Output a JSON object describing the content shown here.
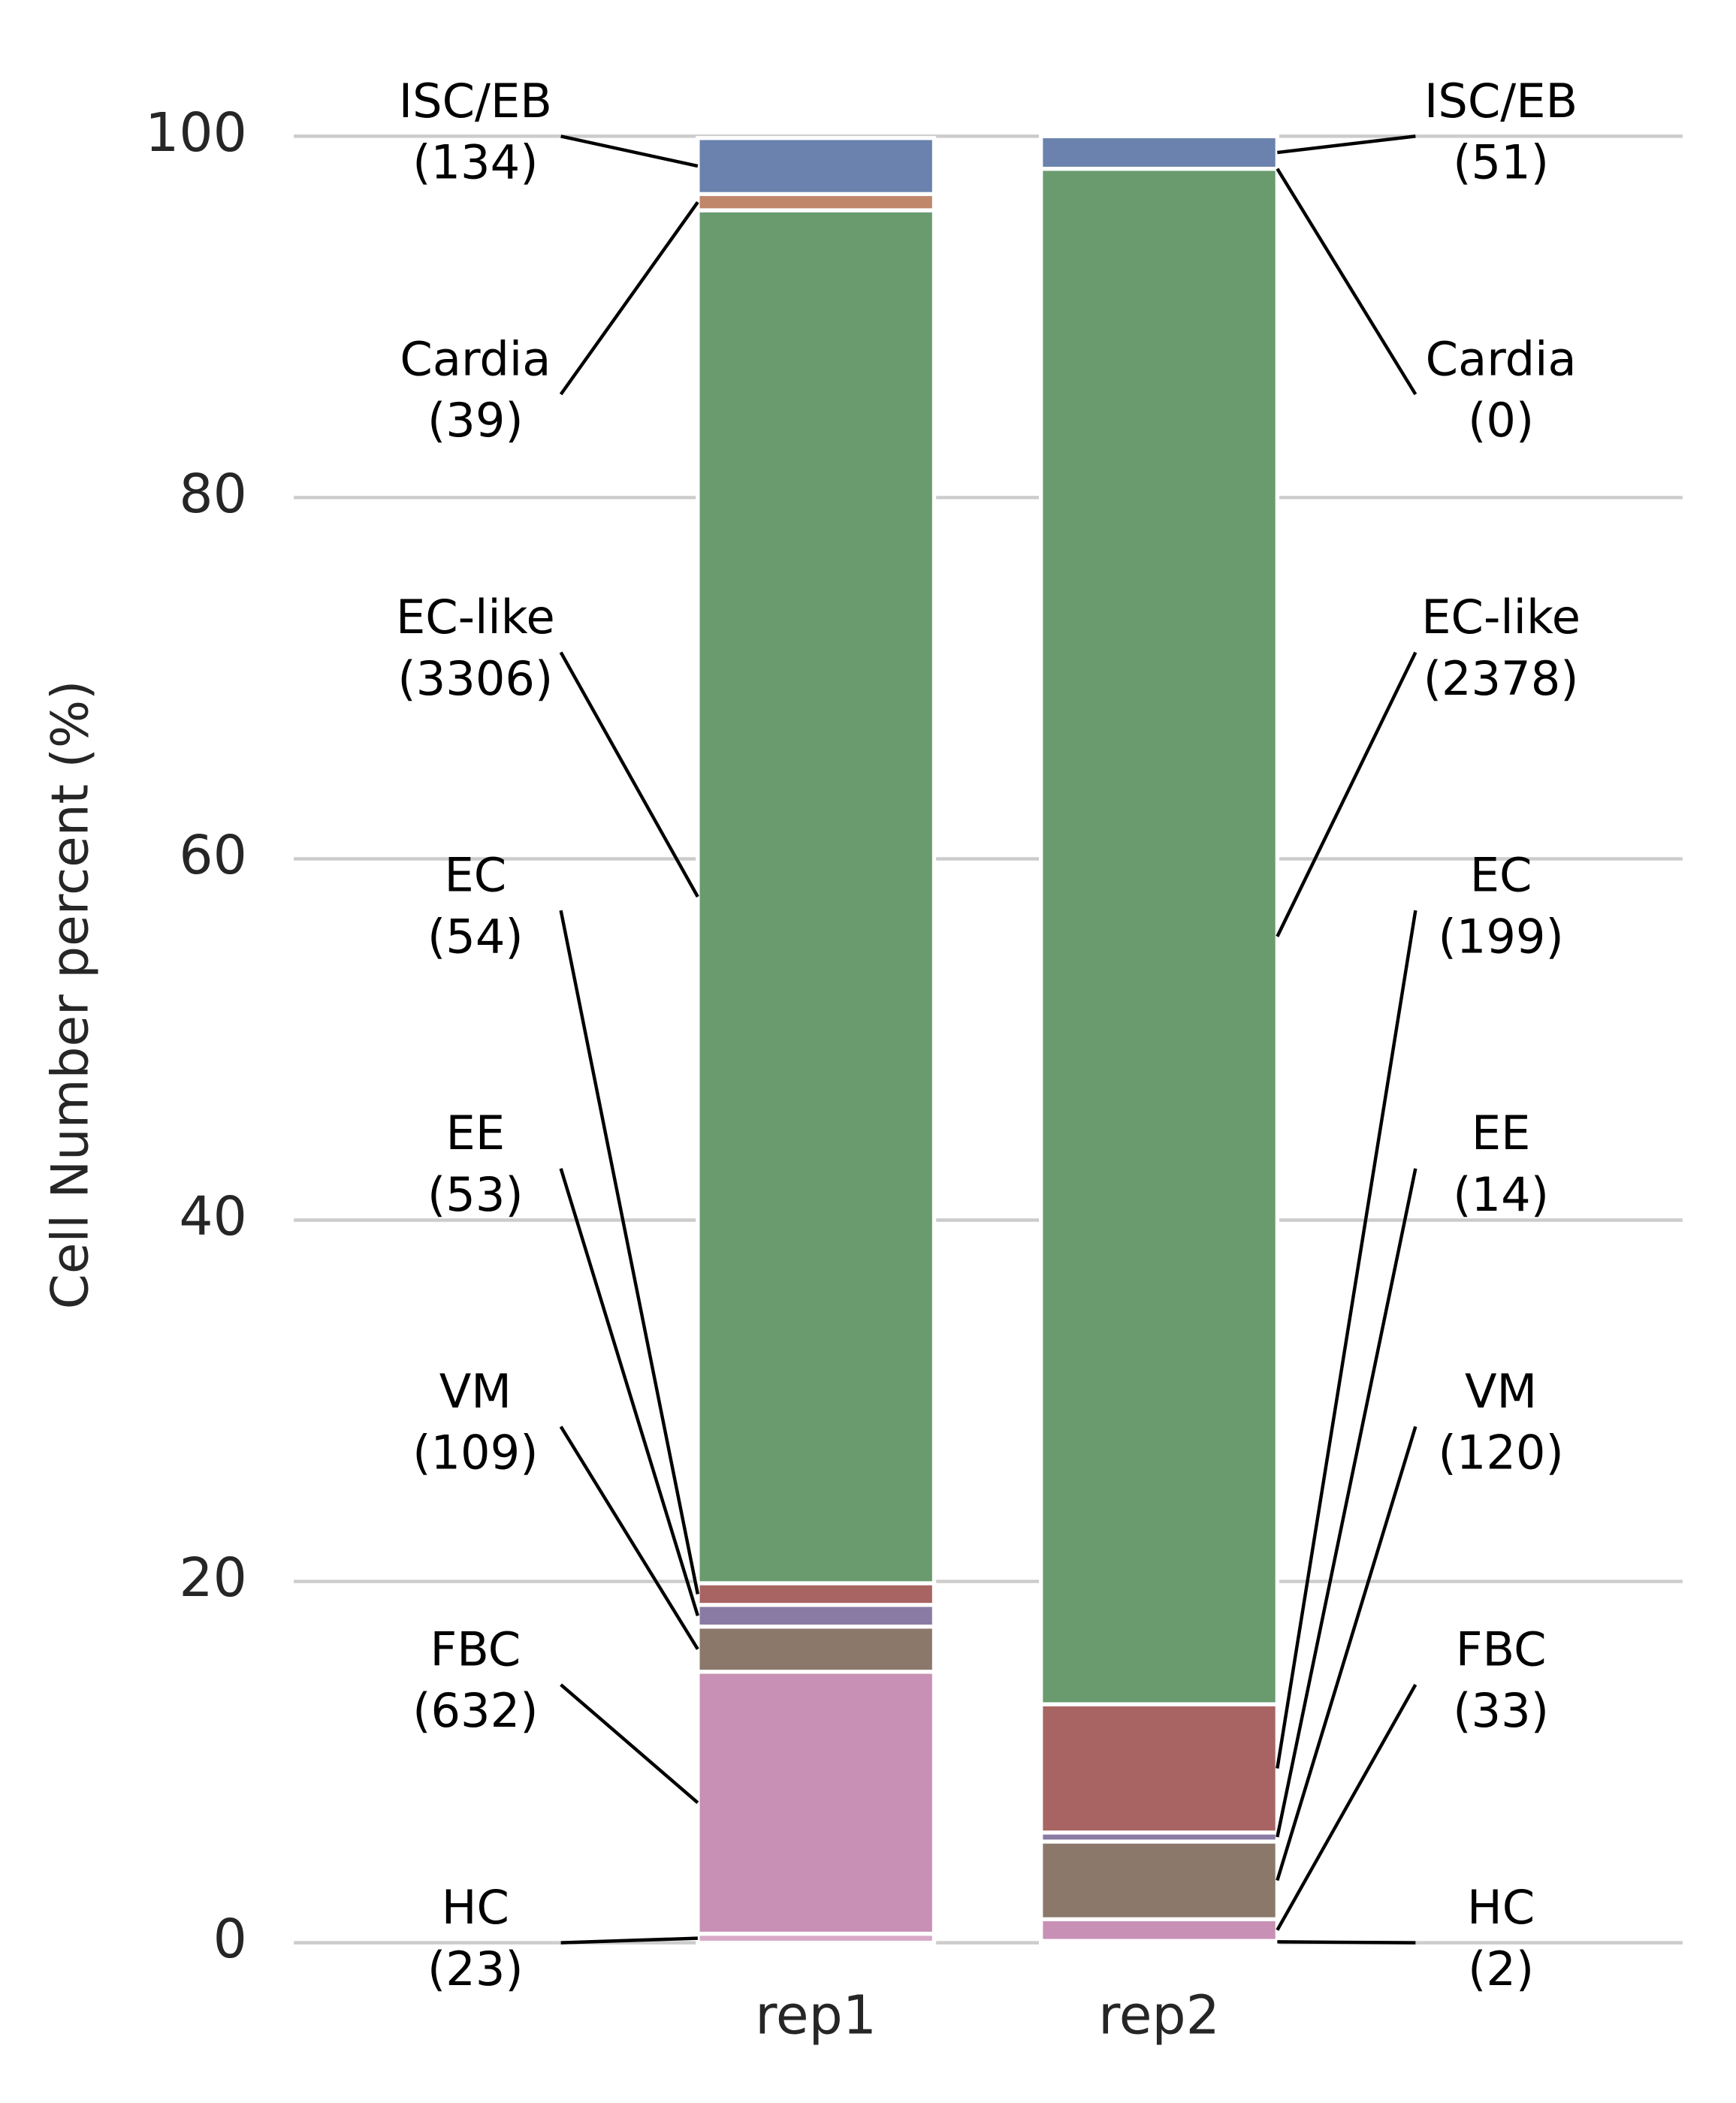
{
  "chart_data": {
    "type": "stacked_bar",
    "y_label": "Cell Number percent (%)",
    "categories": [
      "rep1",
      "rep2"
    ],
    "ylim": [
      0,
      100
    ],
    "yticks": [
      0,
      20,
      40,
      60,
      80,
      100
    ],
    "grid": true,
    "series": [
      {
        "name": "HC",
        "color": "#d8a9c9",
        "values": [
          0.5,
          0.1
        ],
        "count_labels": [
          "(23)",
          "(2)"
        ]
      },
      {
        "name": "FBC",
        "color": "#c890b4",
        "values": [
          14.5,
          1.2
        ],
        "count_labels": [
          "(632)",
          "(33)"
        ]
      },
      {
        "name": "VM",
        "color": "#8b786b",
        "values": [
          2.5,
          4.3
        ],
        "count_labels": [
          "(109)",
          "(120)"
        ]
      },
      {
        "name": "EE",
        "color": "#8a7ba4",
        "values": [
          1.2,
          0.5
        ],
        "count_labels": [
          "(53)",
          "(14)"
        ]
      },
      {
        "name": "EC",
        "color": "#a86462",
        "values": [
          1.2,
          7.1
        ],
        "count_labels": [
          "(54)",
          "(199)"
        ]
      },
      {
        "name": "EC-like",
        "color": "#699b6f",
        "values": [
          76.0,
          85.0
        ],
        "count_labels": [
          "(3306)",
          "(2378)"
        ]
      },
      {
        "name": "Cardia",
        "color": "#c0876a",
        "values": [
          0.9,
          0.0
        ],
        "count_labels": [
          "(39)",
          "(0)"
        ]
      },
      {
        "name": "ISC/EB",
        "color": "#6a82ad",
        "values": [
          3.1,
          1.8
        ],
        "count_labels": [
          "(134)",
          "(51)"
        ]
      }
    ]
  }
}
